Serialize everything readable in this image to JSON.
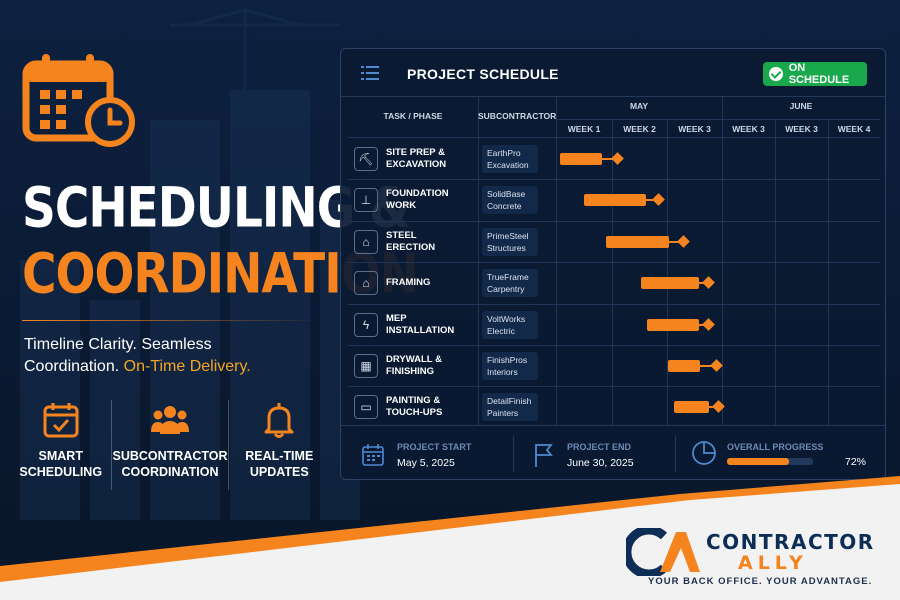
{
  "hero": {
    "title_line1": "SCHEDULING &",
    "title_line2": "COORDINATION",
    "tagline_1": "Timeline Clarity. Seamless",
    "tagline_2": "Coordination. ",
    "tagline_accent": "On-Time Delivery."
  },
  "features": [
    {
      "line1": "SMART",
      "line2": "SCHEDULING",
      "icon": "calendar-check-icon"
    },
    {
      "line1": "SUBCONTRACTOR",
      "line2": "COORDINATION",
      "icon": "team-icon"
    },
    {
      "line1": "REAL-TIME",
      "line2": "UPDATES",
      "icon": "bell-icon"
    }
  ],
  "panel": {
    "title": "PROJECT SCHEDULE",
    "status": "ON SCHEDULE",
    "col_task": "TASK / PHASE",
    "col_sub": "SUBCONTRACTOR",
    "month1": "MAY",
    "month2": "JUNE",
    "weeks": [
      "WEEK 1",
      "WEEK 2",
      "WEEK 3",
      "WEEK 3",
      "WEEK 3",
      "WEEK 4"
    ]
  },
  "tasks": [
    {
      "label": "SITE PREP &\nEXCAVATION",
      "sub": "EarthPro\nExcavation",
      "icon": "excavator-icon",
      "start": 0.0,
      "end": 0.78,
      "milestone": 1.06
    },
    {
      "label": "FOUNDATION\nWORK",
      "sub": "SolidBase\nConcrete",
      "icon": "foundation-icon",
      "start": 0.45,
      "end": 1.6,
      "milestone": 1.82
    },
    {
      "label": "STEEL\nERECTION",
      "sub": "PrimeSteel\nStructures",
      "icon": "steel-beam-icon",
      "start": 0.85,
      "end": 2.02,
      "milestone": 2.28
    },
    {
      "label": "FRAMING",
      "sub": "TrueFrame\nCarpentry",
      "icon": "framing-icon",
      "start": 1.5,
      "end": 2.58,
      "milestone": 2.74
    },
    {
      "label": "MEP\nINSTALLATION",
      "sub": "VoltWorks\nElectric",
      "icon": "electric-icon",
      "start": 1.62,
      "end": 2.58,
      "milestone": 2.74
    },
    {
      "label": "DRYWALL &\nFINISHING",
      "sub": "FinishPros\nInteriors",
      "icon": "drywall-icon",
      "start": 2.0,
      "end": 2.6,
      "milestone": 2.88
    },
    {
      "label": "PAINTING &\nTOUCH-UPS",
      "sub": "DetailFinish\nPainters",
      "icon": "paint-roller-icon",
      "start": 2.12,
      "end": 2.76,
      "milestone": 2.92
    }
  ],
  "footer": {
    "start_label": "PROJECT START",
    "start_value": "May 5, 2025",
    "end_label": "PROJECT END",
    "end_value": "June 30, 2025",
    "progress_label": "OVERALL PROGRESS",
    "progress_value": "72%",
    "progress_fraction": 0.72
  },
  "brand": {
    "name1": "CONTRACTOR",
    "name2": "ALLY",
    "slogan": "YOUR BACK OFFICE. YOUR ADVANTAGE.",
    "primary_color": "#0c2d55",
    "accent_color": "#f5841f"
  }
}
